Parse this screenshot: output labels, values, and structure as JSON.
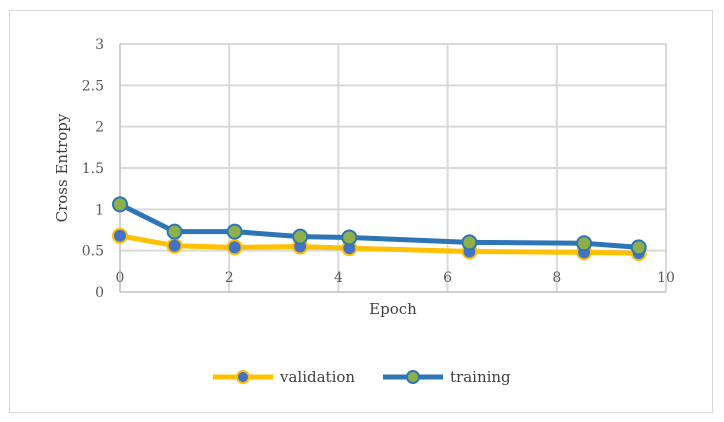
{
  "chart_data": {
    "type": "line",
    "title": "",
    "xlabel": "Epoch",
    "ylabel": "Cross Entropy",
    "xlim": [
      0,
      10
    ],
    "ylim": [
      0,
      3
    ],
    "x_ticks": [
      "0",
      "2",
      "4",
      "6",
      "8",
      "10"
    ],
    "y_ticks": [
      "0",
      "0.5",
      "1",
      "1.5",
      "2",
      "2.5",
      "3"
    ],
    "grid": true,
    "legend_position": "bottom",
    "series": [
      {
        "name": "validation",
        "color": "#FFC000",
        "marker_color": "#4472C4",
        "points": [
          [
            0,
            0.68
          ],
          [
            1,
            0.56
          ],
          [
            2.1,
            0.54
          ],
          [
            3.3,
            0.55
          ],
          [
            4.2,
            0.53
          ],
          [
            6.4,
            0.49
          ],
          [
            8.5,
            0.48
          ],
          [
            9.5,
            0.47
          ]
        ]
      },
      {
        "name": "training",
        "color": "#2E75B6",
        "marker_color": "#8DB04B",
        "points": [
          [
            0,
            1.06
          ],
          [
            1,
            0.73
          ],
          [
            2.1,
            0.73
          ],
          [
            3.3,
            0.67
          ],
          [
            4.2,
            0.66
          ],
          [
            6.4,
            0.6
          ],
          [
            8.5,
            0.59
          ],
          [
            9.5,
            0.54
          ]
        ]
      }
    ]
  }
}
